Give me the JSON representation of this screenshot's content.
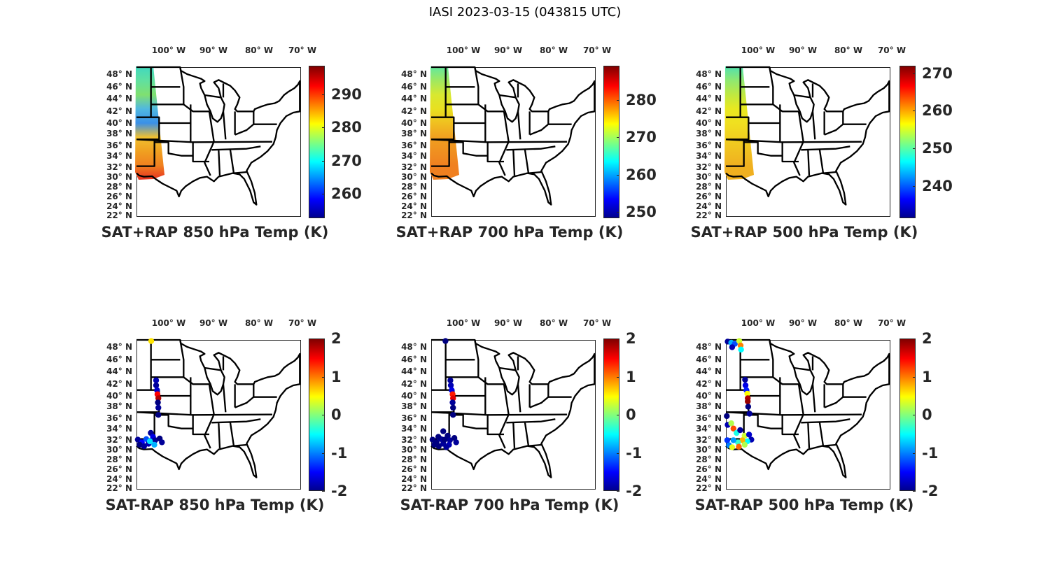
{
  "figure_title": "IASI 2023-03-15 (043815 UTC)",
  "lon_labels": [
    "100° W",
    "90° W",
    "80° W",
    "70° W"
  ],
  "lat_labels": [
    "48° N",
    "46° N",
    "44° N",
    "42° N",
    "40° N",
    "38° N",
    "36° N",
    "34° N",
    "32° N",
    "30° N",
    "28° N",
    "26° N",
    "24° N",
    "22° N"
  ],
  "colormap": "jet",
  "panels": [
    {
      "title": "SAT+RAP 850 hPa Temp (K)",
      "kind": "swath",
      "clim": [
        252.6,
        298.7
      ],
      "ticks": [
        "260",
        "270",
        "280",
        "290"
      ],
      "tick_values": [
        260,
        270,
        280,
        290
      ],
      "swath_colors": [
        "#40d8c0",
        "#60e0a0",
        "#80e070",
        "#50b8e0",
        "#3a90e8",
        "#f0c030",
        "#f0a020",
        "#f08020",
        "#e83020"
      ]
    },
    {
      "title": "SAT+RAP 700 hPa Temp (K)",
      "kind": "swath",
      "clim": [
        248.3,
        289.2
      ],
      "ticks": [
        "250",
        "260",
        "270",
        "280"
      ],
      "tick_values": [
        250,
        260,
        270,
        280
      ],
      "swath_colors": [
        "#60e8a0",
        "#a0e860",
        "#d8e830",
        "#e8e020",
        "#f0c020",
        "#f0a020",
        "#f09020",
        "#f08020",
        "#f08020"
      ]
    },
    {
      "title": "SAT+RAP 500 hPa Temp (K)",
      "kind": "swath",
      "clim": [
        231.4,
        272.0
      ],
      "ticks": [
        "240",
        "250",
        "260",
        "270"
      ],
      "tick_values": [
        240,
        250,
        260,
        270
      ],
      "swath_colors": [
        "#50e0b0",
        "#90e870",
        "#c0e840",
        "#e8e820",
        "#f0e020",
        "#f0d020",
        "#f0c020",
        "#f0b020",
        "#f0b020"
      ]
    },
    {
      "title": "SAT-RAP 850 hPa Temp (K)",
      "kind": "scatter",
      "clim": [
        -2,
        2
      ],
      "ticks": [
        "-2",
        "-1",
        "0",
        "1",
        "2"
      ],
      "tick_values": [
        -2,
        -1,
        0,
        1,
        2
      ],
      "points": [
        [
          -103.9,
          49.3,
          0.6
        ],
        [
          -102.8,
          42.8,
          -1.8
        ],
        [
          -102.8,
          42.0,
          -1.9
        ],
        [
          -102.6,
          41.2,
          -1.7
        ],
        [
          -102.5,
          40.5,
          1.5
        ],
        [
          -102.3,
          39.8,
          1.8
        ],
        [
          -102.4,
          39.0,
          -2
        ],
        [
          -102.3,
          38.0,
          -1.9
        ],
        [
          -102.3,
          36.8,
          -2
        ],
        [
          -106.9,
          32.3,
          -1.9
        ],
        [
          -106.0,
          31.8,
          -1.5
        ],
        [
          -105.0,
          32.4,
          -1.2
        ],
        [
          -104.0,
          33.5,
          -1.9
        ],
        [
          -103.5,
          32.8,
          -1.6
        ],
        [
          -103.0,
          32.2,
          -1.9
        ],
        [
          -102.0,
          32.5,
          -2
        ],
        [
          -101.5,
          31.8,
          -1.9
        ],
        [
          -106.5,
          31.3,
          -2
        ],
        [
          -105.5,
          31.0,
          -1.9
        ],
        [
          -104.5,
          31.5,
          -1.8
        ],
        [
          -103.2,
          31.3,
          -0.8
        ],
        [
          -104.2,
          32.0,
          -0.6
        ]
      ]
    },
    {
      "title": "SAT-RAP 700 hPa Temp (K)",
      "kind": "scatter",
      "clim": [
        -2,
        2
      ],
      "ticks": [
        "-2",
        "-1",
        "0",
        "1",
        "2"
      ],
      "tick_values": [
        -2,
        -1,
        0,
        1,
        2
      ],
      "points": [
        [
          -104.0,
          49.3,
          -2
        ],
        [
          -102.9,
          42.8,
          -1.9
        ],
        [
          -102.8,
          42.0,
          -1.8
        ],
        [
          -102.6,
          41.2,
          -1.6
        ],
        [
          -102.4,
          40.5,
          1.4
        ],
        [
          -102.3,
          39.8,
          1.6
        ],
        [
          -102.4,
          39.0,
          -1.9
        ],
        [
          -102.3,
          38.0,
          -2
        ],
        [
          -102.3,
          36.8,
          -2
        ],
        [
          -106.9,
          32.3,
          -2
        ],
        [
          -106.0,
          31.8,
          -2
        ],
        [
          -105.0,
          32.4,
          -1.9
        ],
        [
          -104.5,
          33.8,
          -2
        ],
        [
          -103.5,
          33.0,
          -2
        ],
        [
          -103.0,
          32.2,
          -1.9
        ],
        [
          -102.0,
          32.6,
          -2
        ],
        [
          -101.6,
          31.8,
          -1.9
        ],
        [
          -106.5,
          31.3,
          -2
        ],
        [
          -105.5,
          31.0,
          -2
        ],
        [
          -104.5,
          31.5,
          -1.9
        ],
        [
          -103.2,
          31.3,
          -1.8
        ],
        [
          -104.2,
          32.3,
          -2
        ],
        [
          -105.6,
          32.8,
          -2
        ],
        [
          -103.8,
          30.8,
          -1.9
        ]
      ]
    },
    {
      "title": "SAT-RAP 500 hPa Temp (K)",
      "kind": "scatter",
      "clim": [
        -2,
        2
      ],
      "ticks": [
        "-2",
        "-1",
        "0",
        "1",
        "2"
      ],
      "tick_values": [
        -2,
        -1,
        0,
        1,
        2
      ],
      "points": [
        [
          -106.8,
          49.2,
          -1.9
        ],
        [
          -106.0,
          49.0,
          -0.8
        ],
        [
          -105.2,
          48.8,
          -1.2
        ],
        [
          -104.2,
          49.3,
          0.3
        ],
        [
          -103.9,
          48.5,
          1.0
        ],
        [
          -103.8,
          47.8,
          -0.5
        ],
        [
          -105.8,
          48.2,
          -1.8
        ],
        [
          -102.9,
          42.9,
          -1.9
        ],
        [
          -102.8,
          42.0,
          -1.6
        ],
        [
          -102.6,
          41.2,
          -1.4
        ],
        [
          -102.4,
          40.6,
          0.5
        ],
        [
          -102.3,
          39.8,
          1.8
        ],
        [
          -102.3,
          39.2,
          1.9
        ],
        [
          -102.2,
          38.2,
          -2
        ],
        [
          -101.9,
          37.0,
          -1.9
        ],
        [
          -107.0,
          36.6,
          -2
        ],
        [
          -106.8,
          35.0,
          -1.8
        ],
        [
          -106.0,
          35.3,
          0.2
        ],
        [
          -105.5,
          34.3,
          1.2
        ],
        [
          -104.8,
          33.5,
          -0.4
        ],
        [
          -104.0,
          34.0,
          -1.9
        ],
        [
          -103.0,
          33.0,
          0.3
        ],
        [
          -102.0,
          33.2,
          -1.7
        ],
        [
          -101.5,
          32.3,
          -1.8
        ],
        [
          -102.4,
          32.0,
          -0.5
        ],
        [
          -103.5,
          32.2,
          0.8
        ],
        [
          -104.5,
          31.8,
          -0.3
        ],
        [
          -105.5,
          32.2,
          -0.9
        ],
        [
          -106.5,
          31.2,
          -1.0
        ],
        [
          -105.8,
          30.8,
          0.4
        ],
        [
          -104.3,
          30.9,
          1.1
        ],
        [
          -103.0,
          31.3,
          0.2
        ],
        [
          -106.9,
          32.2,
          -1.3
        ]
      ]
    }
  ]
}
